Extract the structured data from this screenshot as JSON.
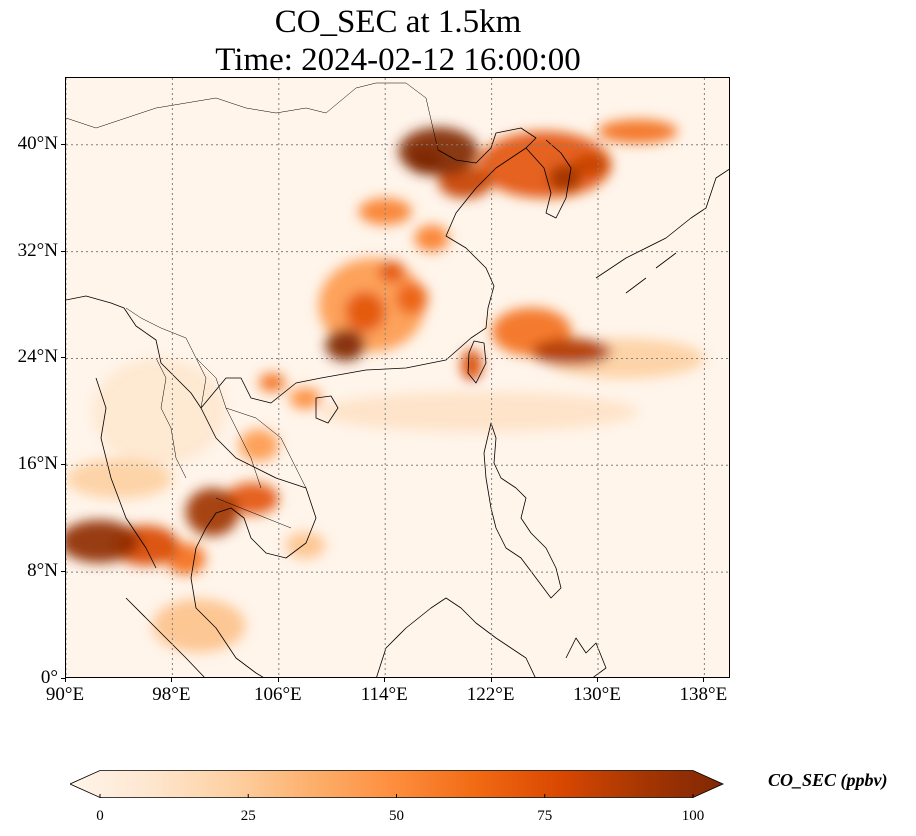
{
  "title_line1": "CO_SEC at 1.5km",
  "title_line2": "Time: 2024-02-12 16:00:00",
  "map": {
    "extent": {
      "lon_min": 90,
      "lon_max": 140,
      "lat_min": 0,
      "lat_max": 45
    },
    "lon_ticks": [
      {
        "value": 90,
        "label": "90°E"
      },
      {
        "value": 98,
        "label": "98°E"
      },
      {
        "value": 106,
        "label": "106°E"
      },
      {
        "value": 114,
        "label": "114°E"
      },
      {
        "value": 122,
        "label": "122°E"
      },
      {
        "value": 130,
        "label": "130°E"
      },
      {
        "value": 138,
        "label": "138°E"
      }
    ],
    "lat_ticks": [
      {
        "value": 0,
        "label": "0°"
      },
      {
        "value": 8,
        "label": "8°N"
      },
      {
        "value": 16,
        "label": "16°N"
      },
      {
        "value": 24,
        "label": "24°N"
      },
      {
        "value": 32,
        "label": "32°N"
      },
      {
        "value": 40,
        "label": "40°N"
      }
    ],
    "gridlines": true,
    "plumes": [
      {
        "lon": 126,
        "lat": 38.5,
        "rlon": 5,
        "rlat": 2.5,
        "value": 70
      },
      {
        "lon": 118,
        "lat": 39.5,
        "rlon": 3,
        "rlat": 1.8,
        "value": 100
      },
      {
        "lon": 117,
        "lat": 38.8,
        "rlon": 1.3,
        "rlat": 1.0,
        "value": 100
      },
      {
        "lon": 120,
        "lat": 37.2,
        "rlon": 2.0,
        "rlat": 1.2,
        "value": 80
      },
      {
        "lon": 127.5,
        "lat": 37.5,
        "rlon": 1.2,
        "rlat": 1.0,
        "value": 90
      },
      {
        "lon": 129.5,
        "lat": 38.5,
        "rlon": 1.4,
        "rlat": 0.8,
        "value": 80
      },
      {
        "lon": 133,
        "lat": 41,
        "rlon": 3,
        "rlat": 0.9,
        "value": 60
      },
      {
        "lon": 114,
        "lat": 35,
        "rlon": 2,
        "rlat": 1,
        "value": 55
      },
      {
        "lon": 117.5,
        "lat": 33,
        "rlon": 1.3,
        "rlat": 1,
        "value": 55
      },
      {
        "lon": 113,
        "lat": 28,
        "rlon": 4,
        "rlat": 3.5,
        "value": 45
      },
      {
        "lon": 111,
        "lat": 25,
        "rlon": 1.5,
        "rlat": 1.2,
        "value": 100
      },
      {
        "lon": 112.5,
        "lat": 27.5,
        "rlon": 1.5,
        "rlat": 1.5,
        "value": 70
      },
      {
        "lon": 116,
        "lat": 28.5,
        "rlon": 1.2,
        "rlat": 1.2,
        "value": 65
      },
      {
        "lon": 114.5,
        "lat": 30.5,
        "rlon": 1,
        "rlat": 0.8,
        "value": 70
      },
      {
        "lon": 125,
        "lat": 26,
        "rlon": 3,
        "rlat": 1.8,
        "value": 60
      },
      {
        "lon": 128,
        "lat": 24.5,
        "rlon": 3,
        "rlat": 1,
        "value": 85
      },
      {
        "lon": 132,
        "lat": 24,
        "rlon": 6,
        "rlat": 1.5,
        "value": 25
      },
      {
        "lon": 120.5,
        "lat": 23.5,
        "rlon": 0.8,
        "rlat": 1.2,
        "value": 75
      },
      {
        "lon": 105.5,
        "lat": 22.2,
        "rlon": 1,
        "rlat": 0.7,
        "value": 60
      },
      {
        "lon": 108,
        "lat": 21,
        "rlon": 1.2,
        "rlat": 0.8,
        "value": 50
      },
      {
        "lon": 104.5,
        "lat": 17.5,
        "rlon": 1.5,
        "rlat": 1.2,
        "value": 45
      },
      {
        "lon": 92.5,
        "lat": 10.3,
        "rlon": 3,
        "rlat": 1.6,
        "value": 95
      },
      {
        "lon": 96,
        "lat": 10,
        "rlon": 2.5,
        "rlat": 1.5,
        "value": 75
      },
      {
        "lon": 101,
        "lat": 12.5,
        "rlon": 2,
        "rlat": 1.8,
        "value": 90
      },
      {
        "lon": 104,
        "lat": 13.5,
        "rlon": 2,
        "rlat": 1.2,
        "value": 70
      },
      {
        "lon": 99,
        "lat": 9,
        "rlon": 1.5,
        "rlat": 1.2,
        "value": 60
      },
      {
        "lon": 100,
        "lat": 4,
        "rlon": 3.5,
        "rlat": 2,
        "value": 30
      },
      {
        "lon": 94,
        "lat": 15,
        "rlon": 4,
        "rlat": 1.5,
        "value": 25
      },
      {
        "lon": 108,
        "lat": 10,
        "rlon": 1.5,
        "rlat": 1,
        "value": 30
      },
      {
        "lon": 121,
        "lat": 20,
        "rlon": 12,
        "rlat": 1.5,
        "value": 15
      },
      {
        "lon": 97,
        "lat": 20,
        "rlon": 5,
        "rlat": 4,
        "value": 12
      }
    ]
  },
  "colorbar": {
    "label": "CO_SEC (ppbv)",
    "min": 0,
    "max": 100,
    "ticks": [
      {
        "value": 0,
        "label": "0"
      },
      {
        "value": 25,
        "label": "25"
      },
      {
        "value": 50,
        "label": "50"
      },
      {
        "value": 75,
        "label": "75"
      },
      {
        "value": 100,
        "label": "100"
      }
    ],
    "extend": "both",
    "colors": [
      "#fff5eb",
      "#fee6ce",
      "#fdd0a2",
      "#fdae6b",
      "#fd8d3c",
      "#f16913",
      "#d94801",
      "#a63603",
      "#7f2704"
    ]
  }
}
